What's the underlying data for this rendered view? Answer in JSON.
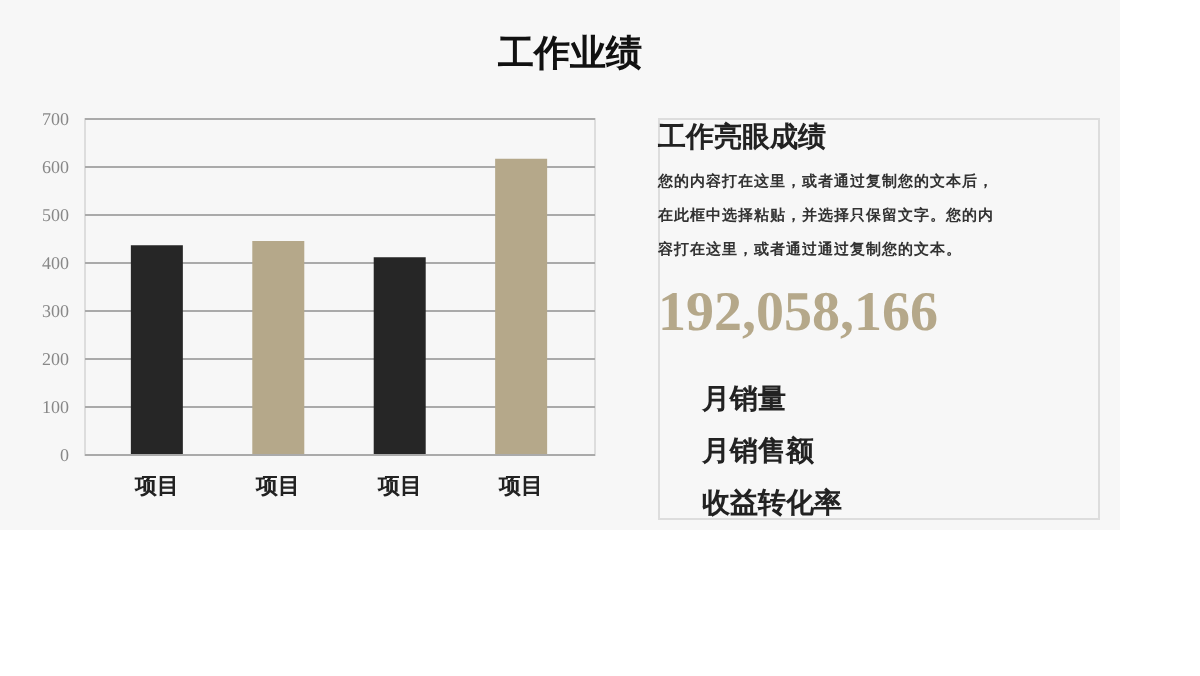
{
  "chart_data": [
    {
      "type": "bar",
      "title": "工作业绩",
      "categories": [
        "项目",
        "项目",
        "项目",
        "项目"
      ],
      "values": [
        435,
        444,
        410,
        615
      ],
      "colors": [
        "#262626",
        "#b5a88a",
        "#262626",
        "#b5a88a"
      ],
      "ylim": [
        0,
        700
      ],
      "yticks": [
        0,
        100,
        200,
        300,
        400,
        500,
        600,
        700
      ],
      "grid": "y",
      "legend": false
    },
    {
      "type": "other",
      "title": "工作亮眼成绩",
      "subtitle": "您的内容打在这里，或者通过复制您的文本后，在此框中选择粘贴，并选择只保留文字。您的内容打在这里，或者通过通过复制您的文本。",
      "annotations": [
        "192,058,166",
        "月销量",
        "月销售额",
        "收益转化率"
      ]
    }
  ]
}
